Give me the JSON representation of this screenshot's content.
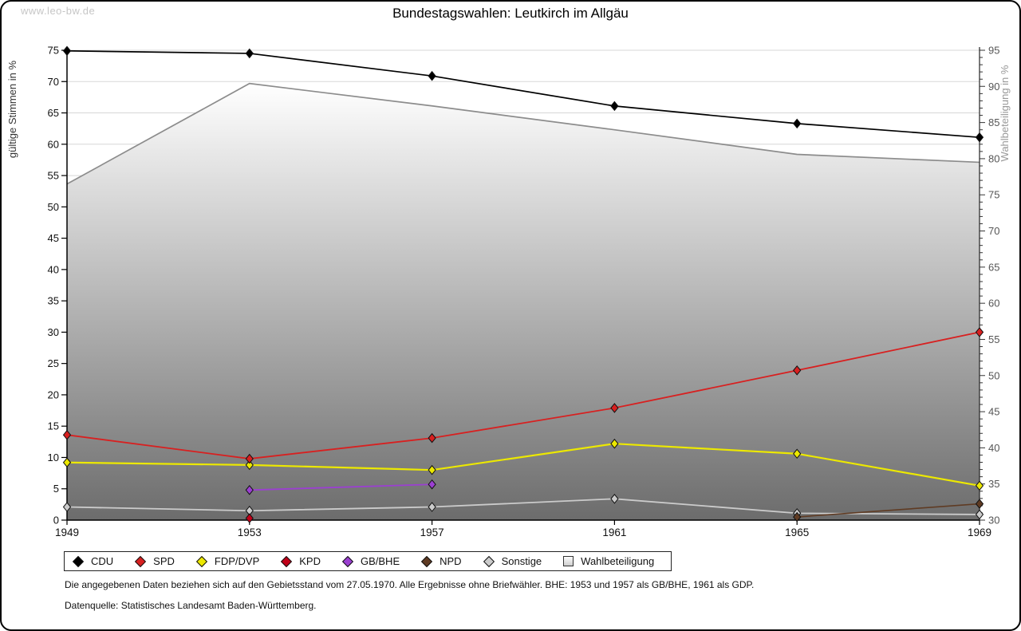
{
  "watermark": "www.leo-bw.de",
  "title": "Bundestagswahlen: Leutkirch im Allgäu",
  "footer": {
    "note1": "Die angegebenen Daten beziehen sich auf den Gebietsstand vom 27.05.1970. Alle Ergebnisse ohne Briefwähler. BHE: 1953 und 1957 als GB/BHE, 1961 als GDP.",
    "note2": "Datenquelle: Statistisches Landesamt Baden-Württemberg."
  },
  "colors": {
    "gridline": "#d7d7d7",
    "axis": "#000000",
    "right_axis_text": "#555555",
    "left_axis_title": "#333333",
    "right_axis_title": "#999999",
    "area_line": "#8c8c8c"
  },
  "chart_data": {
    "type": "line",
    "title": "Bundestagswahlen: Leutkirch im Allgäu",
    "x": [
      1949,
      1953,
      1957,
      1961,
      1965,
      1969
    ],
    "xlabel": "",
    "ylabel_left": "gültige Stimmen in %",
    "ylabel_right": "Wahlbeteiligung in %",
    "ylim_left": [
      0,
      75
    ],
    "ylim_right": [
      30,
      95
    ],
    "ytick_step": 5,
    "grid": true,
    "legend_position": "bottom",
    "area_gradient": [
      "#ffffff",
      "#6c6c6c"
    ],
    "series": [
      {
        "name": "CDU",
        "axis": "left",
        "type": "line",
        "marker": "diamond",
        "color": "#000000",
        "width": 1.7,
        "points": [
          [
            1949,
            74.9
          ],
          [
            1953,
            74.5
          ],
          [
            1957,
            70.9
          ],
          [
            1961,
            66.1
          ],
          [
            1965,
            63.3
          ],
          [
            1969,
            61.1
          ]
        ]
      },
      {
        "name": "SPD",
        "axis": "left",
        "type": "line",
        "marker": "diamond",
        "color": "#d82020",
        "width": 1.8,
        "points": [
          [
            1949,
            13.6
          ],
          [
            1953,
            9.8
          ],
          [
            1957,
            13.1
          ],
          [
            1961,
            17.9
          ],
          [
            1965,
            23.9
          ],
          [
            1969,
            30.0
          ]
        ]
      },
      {
        "name": "FDP/DVP",
        "axis": "left",
        "type": "line",
        "marker": "diamond",
        "color": "#ece800",
        "width": 2.2,
        "points": [
          [
            1949,
            9.2
          ],
          [
            1953,
            8.8
          ],
          [
            1957,
            8.0
          ],
          [
            1961,
            12.2
          ],
          [
            1965,
            10.6
          ],
          [
            1969,
            5.5
          ]
        ]
      },
      {
        "name": "KPD",
        "axis": "left",
        "type": "line",
        "marker": "diamond",
        "color": "#c00018",
        "width": 1.6,
        "points": [
          [
            1953,
            0.3
          ]
        ]
      },
      {
        "name": "GB/BHE",
        "axis": "left",
        "type": "line",
        "marker": "diamond",
        "color": "#9b3fd1",
        "width": 1.8,
        "points": [
          [
            1953,
            4.8
          ],
          [
            1957,
            5.7
          ]
        ]
      },
      {
        "name": "NPD",
        "axis": "left",
        "type": "line",
        "marker": "diamond",
        "color": "#5f3b23",
        "width": 1.6,
        "points": [
          [
            1965,
            0.5
          ],
          [
            1969,
            2.6
          ]
        ]
      },
      {
        "name": "Sonstige",
        "axis": "left",
        "type": "line",
        "marker": "diamond",
        "color": "#cbcbcb",
        "width": 1.8,
        "points": [
          [
            1949,
            2.1
          ],
          [
            1953,
            1.5
          ],
          [
            1957,
            2.1
          ],
          [
            1961,
            3.4
          ],
          [
            1965,
            1.1
          ],
          [
            1969,
            0.9
          ]
        ]
      },
      {
        "name": "Wahlbeteiligung",
        "axis": "right",
        "type": "area",
        "marker": "square",
        "color": "#8c8c8c",
        "width": 1.7,
        "points": [
          [
            1949,
            76.5
          ],
          [
            1953,
            90.4
          ],
          [
            1957,
            87.3
          ],
          [
            1961,
            84.0
          ],
          [
            1965,
            80.6
          ],
          [
            1969,
            79.5
          ]
        ]
      }
    ]
  }
}
